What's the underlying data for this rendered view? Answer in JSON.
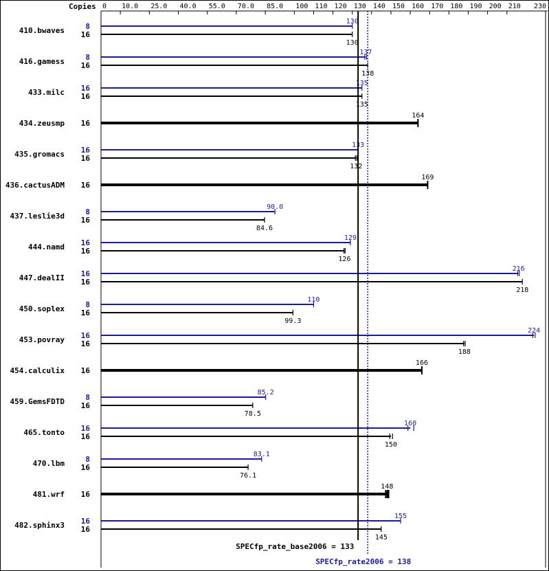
{
  "chart_data": {
    "type": "bar",
    "orientation": "horizontal",
    "axis_title": "Copies",
    "xlim": [
      0,
      230
    ],
    "ticks": [
      {
        "value": 0,
        "label": "0"
      },
      {
        "value": 10,
        "label": "10.0"
      },
      {
        "value": 25,
        "label": "25.0"
      },
      {
        "value": 40,
        "label": "40.0"
      },
      {
        "value": 55,
        "label": "55.0"
      },
      {
        "value": 70,
        "label": "70.0"
      },
      {
        "value": 85,
        "label": "85.0"
      },
      {
        "value": 100,
        "label": "100"
      },
      {
        "value": 110,
        "label": "110"
      },
      {
        "value": 120,
        "label": "120"
      },
      {
        "value": 130,
        "label": "130"
      },
      {
        "value": 140,
        "label": "140"
      },
      {
        "value": 150,
        "label": "150"
      },
      {
        "value": 160,
        "label": "160"
      },
      {
        "value": 170,
        "label": "170"
      },
      {
        "value": 180,
        "label": "180"
      },
      {
        "value": 190,
        "label": "190"
      },
      {
        "value": 200,
        "label": "200"
      },
      {
        "value": 210,
        "label": "210"
      },
      {
        "value": 230,
        "label": "230"
      }
    ],
    "colors": {
      "base": "#000000",
      "peak": "#1b1b99"
    },
    "benchmarks": [
      {
        "name": "410.bwaves",
        "peak": {
          "copies": "8",
          "value": 130,
          "label": "130",
          "runs": [
            130
          ]
        },
        "base": {
          "copies": "16",
          "value": 130,
          "label": "130",
          "runs": [
            130
          ]
        }
      },
      {
        "name": "416.gamess",
        "peak": {
          "copies": "8",
          "value": 137,
          "label": "137",
          "runs": [
            136.5,
            137.4
          ]
        },
        "base": {
          "copies": "16",
          "value": 138,
          "label": "138",
          "runs": [
            138
          ]
        }
      },
      {
        "name": "433.milc",
        "peak": {
          "copies": "16",
          "value": 135,
          "label": "135",
          "runs": [
            135
          ]
        },
        "base": {
          "copies": "16",
          "value": 135,
          "label": "135",
          "runs": [
            135
          ]
        }
      },
      {
        "name": "434.zeusmp",
        "peak": null,
        "base": {
          "copies": "16",
          "value": 164,
          "label": "164",
          "runs": [
            164
          ]
        }
      },
      {
        "name": "435.gromacs",
        "peak": {
          "copies": "16",
          "value": 133,
          "label": "133",
          "runs": [
            133
          ]
        },
        "base": {
          "copies": "16",
          "value": 132,
          "label": "132",
          "runs": [
            131.6,
            132.4
          ]
        }
      },
      {
        "name": "436.cactusADM",
        "peak": null,
        "base": {
          "copies": "16",
          "value": 169,
          "label": "169",
          "runs": [
            169
          ]
        }
      },
      {
        "name": "437.leslie3d",
        "peak": {
          "copies": "8",
          "value": 90.0,
          "label": "90.0",
          "runs": [
            90.0
          ]
        },
        "base": {
          "copies": "16",
          "value": 84.6,
          "label": "84.6",
          "runs": [
            84.6
          ]
        }
      },
      {
        "name": "444.namd",
        "peak": {
          "copies": "16",
          "value": 129,
          "label": "129",
          "runs": [
            129
          ]
        },
        "base": {
          "copies": "16",
          "value": 126,
          "label": "126",
          "runs": [
            125.7,
            126.3
          ]
        }
      },
      {
        "name": "447.dealII",
        "peak": {
          "copies": "16",
          "value": 216,
          "label": "216",
          "runs": [
            215.6,
            216.4
          ]
        },
        "base": {
          "copies": "16",
          "value": 218,
          "label": "218",
          "runs": [
            218
          ]
        }
      },
      {
        "name": "450.soplex",
        "peak": {
          "copies": "8",
          "value": 110,
          "label": "110",
          "runs": [
            110
          ]
        },
        "base": {
          "copies": "16",
          "value": 99.3,
          "label": "99.3",
          "runs": [
            99.3
          ]
        }
      },
      {
        "name": "453.povray",
        "peak": {
          "copies": "16",
          "value": 224,
          "label": "224",
          "runs": [
            223.4,
            224.6
          ]
        },
        "base": {
          "copies": "16",
          "value": 188,
          "label": "188",
          "runs": [
            187.6,
            188.4
          ]
        }
      },
      {
        "name": "454.calculix",
        "peak": null,
        "base": {
          "copies": "16",
          "value": 166,
          "label": "166",
          "runs": [
            166
          ]
        }
      },
      {
        "name": "459.GemsFDTD",
        "peak": {
          "copies": "8",
          "value": 85.2,
          "label": "85.2",
          "runs": [
            85.2
          ]
        },
        "base": {
          "copies": "16",
          "value": 78.5,
          "label": "78.5",
          "runs": [
            78.5
          ]
        }
      },
      {
        "name": "465.tonto",
        "peak": {
          "copies": "16",
          "value": 160,
          "label": "160",
          "runs": [
            158.8,
            161.8
          ]
        },
        "base": {
          "copies": "16",
          "value": 150,
          "label": "150",
          "runs": [
            149.4,
            150.8
          ]
        }
      },
      {
        "name": "470.lbm",
        "peak": {
          "copies": "8",
          "value": 83.1,
          "label": "83.1",
          "runs": [
            83.1
          ]
        },
        "base": {
          "copies": "16",
          "value": 76.1,
          "label": "76.1",
          "runs": [
            76.1
          ]
        }
      },
      {
        "name": "481.wrf",
        "peak": null,
        "base": {
          "copies": "16",
          "value": 148,
          "label": "148",
          "runs": [
            147.3,
            148.1,
            148.8
          ]
        }
      },
      {
        "name": "482.sphinx3",
        "peak": {
          "copies": "16",
          "value": 155,
          "label": "155",
          "runs": [
            155
          ]
        },
        "base": {
          "copies": "16",
          "value": 145,
          "label": "145",
          "runs": [
            145
          ]
        }
      }
    ],
    "summary": {
      "base": {
        "label": "SPECfp_rate_base2006 = 133",
        "value": 133
      },
      "peak": {
        "label": "SPECfp_rate2006 = 138",
        "value": 138
      }
    }
  }
}
